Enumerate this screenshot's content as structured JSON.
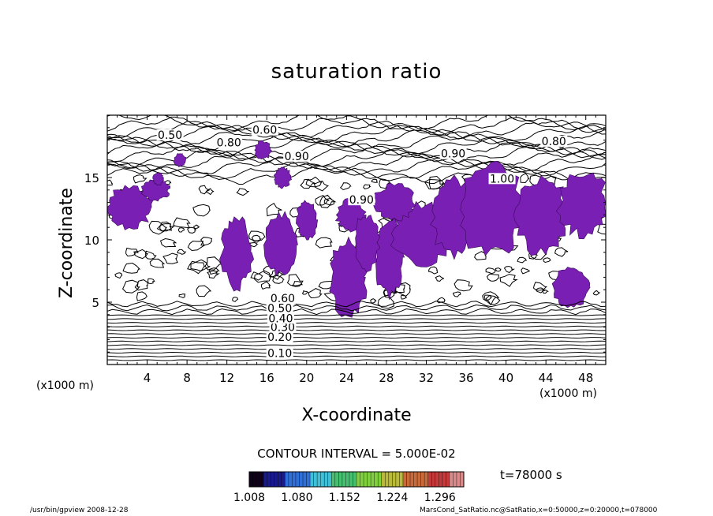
{
  "chart_data": {
    "type": "heatmap",
    "title": "saturation ratio",
    "xlabel": "X-coordinate",
    "ylabel": "Z-coordinate",
    "x_unit": "(x1000 m)",
    "z_unit": "(x1000 m)",
    "xlim": [
      0,
      50
    ],
    "ylim": [
      0,
      20
    ],
    "x_ticks": [
      4,
      8,
      12,
      16,
      20,
      24,
      28,
      32,
      36,
      40,
      44,
      48
    ],
    "y_ticks": [
      5,
      10,
      15
    ],
    "contour_interval_text": "CONTOUR INTERVAL = 5.000E-02",
    "contour_labels": [
      {
        "text": "0.10",
        "x": 17.3,
        "y": 0.6
      },
      {
        "text": "0.20",
        "x": 17.3,
        "y": 1.9
      },
      {
        "text": "0.30",
        "x": 17.6,
        "y": 2.7
      },
      {
        "text": "0.40",
        "x": 17.4,
        "y": 3.4
      },
      {
        "text": "0.50",
        "x": 17.3,
        "y": 4.2
      },
      {
        "text": "0.60",
        "x": 17.6,
        "y": 5.0
      },
      {
        "text": "0.50",
        "x": 6.3,
        "y": 18.1
      },
      {
        "text": "0.60",
        "x": 15.8,
        "y": 18.5
      },
      {
        "text": "0.80",
        "x": 12.2,
        "y": 17.5
      },
      {
        "text": "0.80",
        "x": 44.8,
        "y": 17.6
      },
      {
        "text": "0.90",
        "x": 19.0,
        "y": 16.4
      },
      {
        "text": "0.90",
        "x": 34.7,
        "y": 16.6
      },
      {
        "text": "0.90",
        "x": 25.5,
        "y": 12.9
      },
      {
        "text": "1.00",
        "x": 39.6,
        "y": 14.6
      }
    ],
    "shaded_threshold": 1.0,
    "shaded_color": "#7a1fb3",
    "colorbar": {
      "tick_labels": [
        "1.008",
        "1.080",
        "1.152",
        "1.224",
        "1.296"
      ],
      "range": [
        1.008,
        1.332
      ],
      "colors": [
        "#100018",
        "#1a1a8c",
        "#2f6fd8",
        "#3fbfd8",
        "#46c070",
        "#7fcf3f",
        "#b9b93a",
        "#c86a3a",
        "#c53a3a",
        "#d88a8a"
      ]
    },
    "time_label": "t=78000 s"
  },
  "footer": {
    "left": "/usr/bin/gpview   2008-12-28",
    "right": "MarsCond_SatRatio.nc@SatRatio,x=0:50000,z=0:20000,t=078000"
  }
}
